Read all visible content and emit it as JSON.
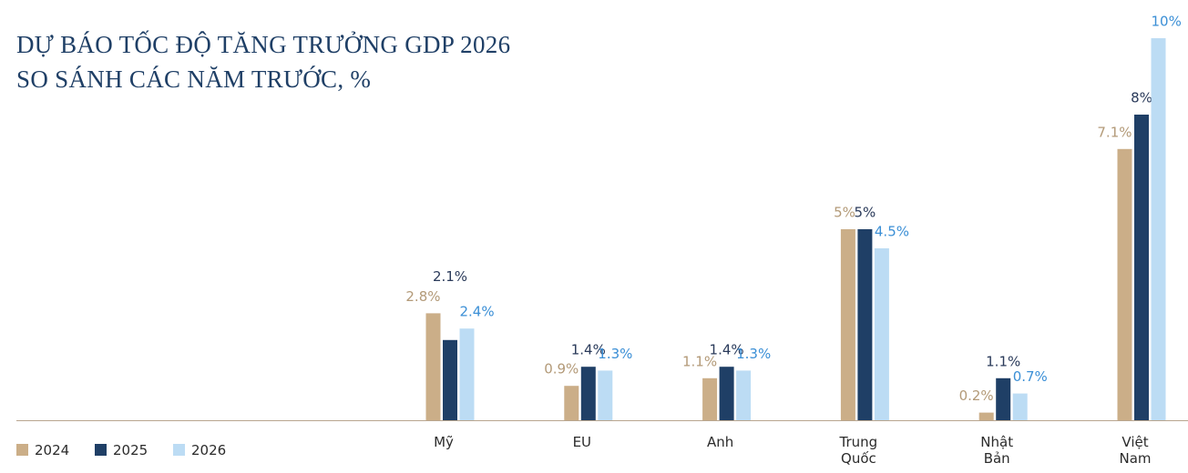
{
  "chart_data": {
    "type": "bar",
    "title": "DỰ BÁO TỐC ĐỘ TĂNG TRƯỞNG GDP 2026",
    "subtitle": "SO SÁNH CÁC NĂM TRƯỚC, %",
    "categories": [
      "Mỹ",
      "EU",
      "Anh",
      "Trung Quốc",
      "Nhật Bản",
      "Việt Nam"
    ],
    "series": [
      {
        "name": "2024",
        "color": "#cbae88",
        "label_color": "#b39a78",
        "values": [
          2.8,
          0.9,
          1.1,
          5,
          0.2,
          7.1
        ],
        "value_labels": [
          "2.8%",
          "0.9%",
          "1.1%",
          "5%",
          "0.2%",
          "7.1%"
        ]
      },
      {
        "name": "2025",
        "color": "#1f3f66",
        "label_color": "#2a3a5a",
        "values": [
          2.1,
          1.4,
          1.4,
          5,
          1.1,
          8
        ],
        "value_labels": [
          "2.1%",
          "1.4%",
          "1.4%",
          "5%",
          "1.1%",
          "8%"
        ]
      },
      {
        "name": "2026",
        "color": "#bcdcf4",
        "label_color": "#3b8fd6",
        "values": [
          2.4,
          1.3,
          1.3,
          4.5,
          0.7,
          10
        ],
        "value_labels": [
          "2.4%",
          "1.3%",
          "1.3%",
          "4.5%",
          "0.7%",
          "10%"
        ]
      }
    ]
  }
}
